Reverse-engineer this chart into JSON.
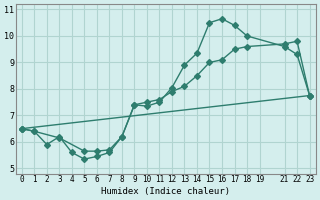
{
  "xlabel": "Humidex (Indice chaleur)",
  "ylabel": "",
  "bg_color": "#d4eeed",
  "grid_color": "#b0d4d0",
  "line_color": "#2e7d6e",
  "xlim": [
    -0.5,
    23.5
  ],
  "ylim": [
    4.8,
    11.2
  ],
  "xticks": [
    0,
    1,
    2,
    3,
    4,
    5,
    6,
    7,
    8,
    9,
    10,
    11,
    12,
    13,
    14,
    15,
    16,
    17,
    18,
    19,
    21,
    22,
    23
  ],
  "yticks": [
    5,
    6,
    7,
    8,
    9,
    10,
    11
  ],
  "line1_x": [
    0,
    1,
    2,
    3,
    4,
    5,
    6,
    7,
    8,
    9,
    10,
    11,
    12,
    13,
    14,
    15,
    16,
    17,
    18,
    21,
    22,
    23
  ],
  "line1_y": [
    6.5,
    6.4,
    5.9,
    6.2,
    5.6,
    5.35,
    5.45,
    5.6,
    6.2,
    7.4,
    7.35,
    7.5,
    8.05,
    8.9,
    9.35,
    10.5,
    10.65,
    10.4,
    10.0,
    9.6,
    9.3,
    7.75
  ],
  "line2_x": [
    0,
    1,
    3,
    5,
    6,
    7,
    8,
    9,
    10,
    11,
    12,
    13,
    14,
    15,
    16,
    17,
    18,
    21,
    22,
    23
  ],
  "line2_y": [
    6.5,
    6.4,
    6.15,
    5.65,
    5.65,
    5.7,
    6.2,
    7.4,
    7.5,
    7.6,
    7.9,
    8.1,
    8.5,
    9.0,
    9.1,
    9.5,
    9.6,
    9.7,
    9.8,
    7.75
  ],
  "line3_x": [
    0,
    23
  ],
  "line3_y": [
    6.5,
    7.75
  ]
}
